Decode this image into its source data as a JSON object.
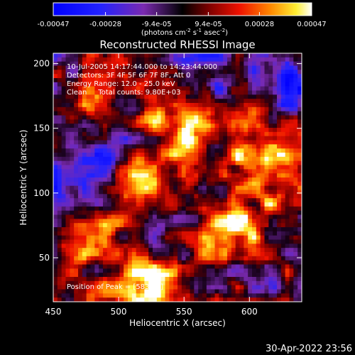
{
  "chart_data": {
    "type": "heatmap",
    "title": "Reconstructed RHESSI Image",
    "xlabel": "Heliocentric X (arcsec)",
    "ylabel": "Heliocentric Y (arcsec)",
    "xlim": [
      450,
      640
    ],
    "ylim": [
      16,
      208
    ],
    "x_ticks": [
      450,
      500,
      550,
      600
    ],
    "y_ticks": [
      50,
      100,
      150,
      200
    ],
    "colorbar": {
      "ticks": [
        "-0.00047",
        "-0.00028",
        "-9.4e-05",
        "9.4e-05",
        "0.00028",
        "0.00047"
      ],
      "tick_values": [
        -0.00047,
        -0.00028,
        -9.4e-05,
        9.4e-05,
        0.00028,
        0.00047
      ],
      "range": [
        -0.00047,
        0.00047
      ],
      "unit_label_parts": [
        "(photons cm",
        "-2",
        " s",
        "-1",
        " asec",
        "-2",
        ")"
      ]
    },
    "annotations": [
      "10-Jul-2005 14:17:44.000 to 14:23:44.000",
      "Detectors: 3F 4F 5F 6F 7F 8F, Att 0",
      "Energy Range: 12.0 - 25.0 keV",
      "Clean     Total counts: 9.80E+03"
    ],
    "peak_label": "Position of Peak = [583,70]",
    "peak": {
      "x": 583,
      "y": 70
    },
    "bright_regions": [
      {
        "x": 545,
        "y": 155,
        "intensity": 0.0004
      },
      {
        "x": 515,
        "y": 105,
        "intensity": 0.00034
      },
      {
        "x": 583,
        "y": 70,
        "intensity": 0.00047
      },
      {
        "x": 520,
        "y": 25,
        "intensity": 0.00045
      },
      {
        "x": 470,
        "y": 60,
        "intensity": 0.0003
      },
      {
        "x": 620,
        "y": 110,
        "intensity": 0.00028
      },
      {
        "x": 600,
        "y": 140,
        "intensity": 0.00026
      },
      {
        "x": 480,
        "y": 165,
        "intensity": 0.00022
      }
    ],
    "dim_regions": [
      {
        "x": 490,
        "y": 120,
        "intensity": -0.0003
      },
      {
        "x": 560,
        "y": 195,
        "intensity": -0.00025
      },
      {
        "x": 630,
        "y": 185,
        "intensity": -0.00028
      },
      {
        "x": 460,
        "y": 110,
        "intensity": -0.00022
      }
    ]
  },
  "footer": {
    "timestamp": "30-Apr-2022 23:56"
  }
}
